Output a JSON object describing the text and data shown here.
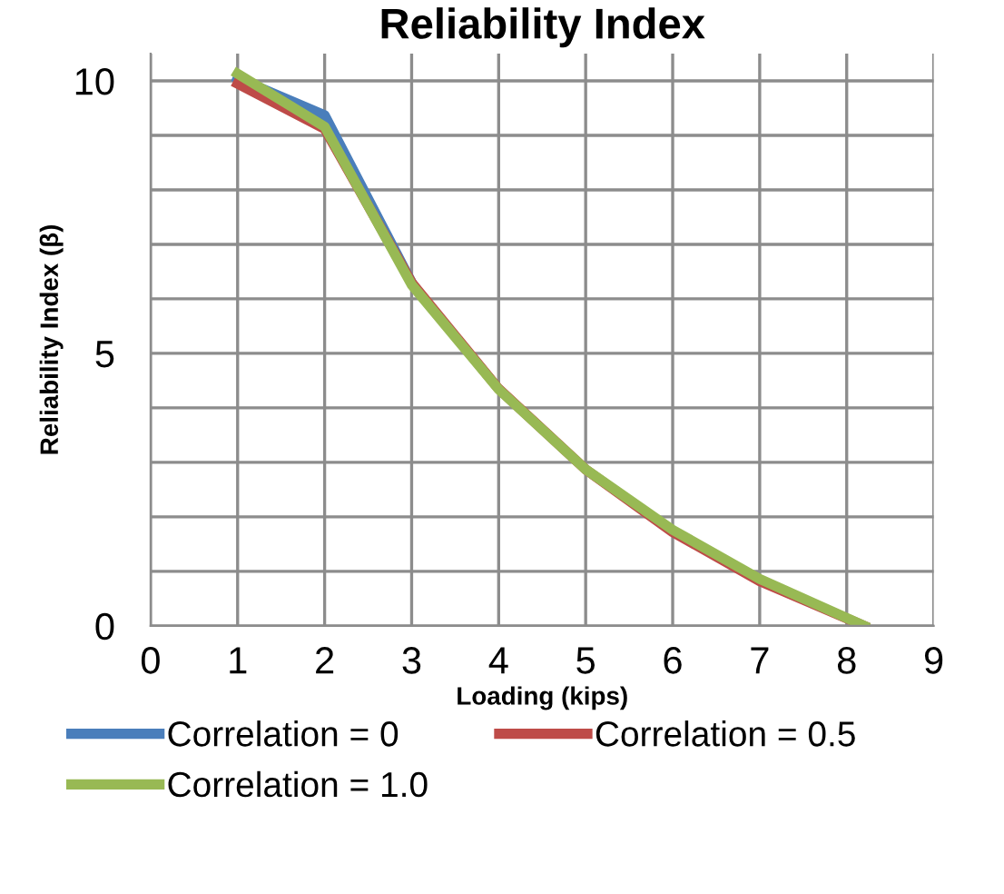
{
  "chart_data": {
    "type": "line",
    "title": "Reliability Index",
    "xlabel": "Loading (kips)",
    "ylabel": "Reliability Index (β)",
    "series": [
      {
        "name": "Correlation = 0",
        "color": "#4a7ebb",
        "x": [
          1,
          2,
          3
        ],
        "values": [
          10.05,
          9.37,
          6.3
        ]
      },
      {
        "name": "Correlation = 0.5",
        "color": "#be4b48",
        "x": [
          1,
          2,
          3,
          4,
          5,
          6,
          7,
          8.2
        ],
        "values": [
          9.95,
          9.12,
          6.3,
          4.35,
          2.87,
          1.72,
          0.82,
          0
        ]
      },
      {
        "name": "Correlation = 1.0",
        "color": "#98b954",
        "x": [
          1,
          2,
          3,
          4,
          5,
          6,
          7,
          8.2
        ],
        "values": [
          10.13,
          9.16,
          6.26,
          4.34,
          2.87,
          1.76,
          0.86,
          0
        ]
      }
    ],
    "xlim": [
      0,
      9
    ],
    "xticks": [
      0,
      1,
      2,
      3,
      4,
      5,
      6,
      7,
      8,
      9
    ],
    "ylim": [
      0,
      10.5
    ],
    "yticks": [
      0,
      {
        "value": 1,
        "label": null
      },
      {
        "value": 2,
        "label": null
      },
      {
        "value": 3,
        "label": null
      },
      {
        "value": 4,
        "label": null
      },
      5,
      {
        "value": 6,
        "label": null
      },
      {
        "value": 7,
        "label": null
      },
      {
        "value": 8,
        "label": null
      },
      {
        "value": 9,
        "label": null
      },
      10
    ],
    "grid": true,
    "legend": "bottom",
    "marker": "none",
    "line_style": "solid"
  }
}
